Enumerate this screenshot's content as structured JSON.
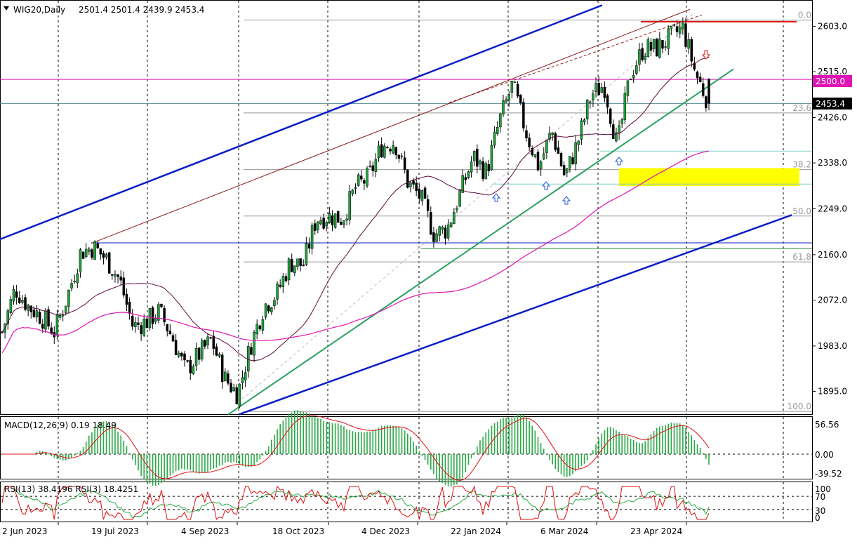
{
  "header": {
    "symbol_label": "WIG20,Daily",
    "ohlc_label": "2501.4 2501.4 2439.9 2453.4"
  },
  "price_labels": {
    "level_2500": "2500.0",
    "last_price": "2453.4"
  },
  "fib_labels": [
    {
      "label": "0.0",
      "price": 2615
    },
    {
      "label": "23.6",
      "price": 2435
    },
    {
      "label": "38.2",
      "price": 2325
    },
    {
      "label": "50.0",
      "price": 2235
    },
    {
      "label": "61.8",
      "price": 2146
    },
    {
      "label": "100.0",
      "price": 1856
    }
  ],
  "macd": {
    "label": "MACD(12,26,9) 0.19 18.49",
    "ticks": [
      "56.56",
      "0.00",
      "-39.52"
    ]
  },
  "rsi": {
    "label": "RSI(13) 38.4196  RSI(3) 18.4251",
    "ticks": [
      "100",
      "70",
      "30",
      "0"
    ]
  },
  "colors": {
    "bull": "#1fa33a",
    "bear": "#000000",
    "sma_short": "#5a0a3c",
    "sma_long": "#e014b4",
    "blue_channel": "#0a1ec8",
    "brown_channel": "#8b1a1a",
    "green_trend": "#2aa060",
    "support_fill": "#ffff00",
    "resistance": "#e01010",
    "macd_hist": "#2aa845",
    "macd_signal": "#e01010",
    "rsi_13": "#2aa845",
    "rsi_3": "#e01010",
    "fib": "#999999",
    "arrow_up": "#1e5ad8",
    "arrow_down": "#e01010"
  },
  "chart_data": {
    "type": "candlestick",
    "symbol": "WIG20",
    "timeframe": "Daily",
    "last": {
      "open": 2501.4,
      "high": 2501.4,
      "low": 2439.9,
      "close": 2453.4
    },
    "y_ticks": [
      2603.0,
      2515.0,
      2426.0,
      2338.0,
      2249.0,
      2160.0,
      2072.0,
      1983.0,
      1895.0
    ],
    "ylim": [
      1850,
      2640
    ],
    "x_tick_labels": [
      "2 Jun 2023",
      "19 Jul 2023",
      "4 Sep 2023",
      "18 Oct 2023",
      "4 Dec 2023",
      "22 Jan 2024",
      "6 Mar 2024",
      "23 Apr 2024"
    ],
    "horizontal_levels": [
      {
        "name": "2500 level",
        "price": 2500.0
      },
      {
        "name": "last price",
        "price": 2453.4
      },
      {
        "name": "resistance",
        "price": 2612
      },
      {
        "name": "support zone",
        "price_from": 2293,
        "price_to": 2328
      },
      {
        "name": "Jul-2023 high",
        "price": 2183
      },
      {
        "name": "Nov-2023 low",
        "price": 2172
      }
    ],
    "close_path": [
      [
        "2 Jun 2023",
        2010
      ],
      [
        "8 Jun 2023",
        2095
      ],
      [
        "14 Jun 2023",
        2060
      ],
      [
        "21 Jun 2023",
        2040
      ],
      [
        "28 Jun 2023",
        2010
      ],
      [
        "5 Jul 2023",
        2080
      ],
      [
        "12 Jul 2023",
        2165
      ],
      [
        "19 Jul 2023",
        2175
      ],
      [
        "26 Jul 2023",
        2150
      ],
      [
        "2 Aug 2023",
        2110
      ],
      [
        "9 Aug 2023",
        2020
      ],
      [
        "16 Aug 2023",
        2030
      ],
      [
        "23 Aug 2023",
        2050
      ],
      [
        "30 Aug 2023",
        2000
      ],
      [
        "4 Sep 2023",
        1935
      ],
      [
        "12 Sep 2023",
        1965
      ],
      [
        "19 Sep 2023",
        1995
      ],
      [
        "26 Sep 2023",
        1920
      ],
      [
        "3 Oct 2023",
        1890
      ],
      [
        "9 Oct 2023",
        1985
      ],
      [
        "13 Oct 2023",
        2060
      ],
      [
        "18 Oct 2023",
        2085
      ],
      [
        "25 Oct 2023",
        2145
      ],
      [
        "1 Nov 2023",
        2140
      ],
      [
        "8 Nov 2023",
        2230
      ],
      [
        "15 Nov 2023",
        2235
      ],
      [
        "22 Nov 2023",
        2230
      ],
      [
        "29 Nov 2023",
        2290
      ],
      [
        "4 Dec 2023",
        2310
      ],
      [
        "11 Dec 2023",
        2370
      ],
      [
        "18 Dec 2023",
        2380
      ],
      [
        "27 Dec 2023",
        2300
      ],
      [
        "3 Jan 2024",
        2270
      ],
      [
        "10 Jan 2024",
        2200
      ],
      [
        "17 Jan 2024",
        2210
      ],
      [
        "22 Jan 2024",
        2280
      ],
      [
        "29 Jan 2024",
        2350
      ],
      [
        "5 Feb 2024",
        2320
      ],
      [
        "12 Feb 2024",
        2420
      ],
      [
        "16 Feb 2024",
        2490
      ],
      [
        "23 Feb 2024",
        2400
      ],
      [
        "1 Mar 2024",
        2330
      ],
      [
        "6 Mar 2024",
        2400
      ],
      [
        "13 Mar 2024",
        2310
      ],
      [
        "20 Mar 2024",
        2380
      ],
      [
        "27 Mar 2024",
        2470
      ],
      [
        "3 Apr 2024",
        2490
      ],
      [
        "10 Apr 2024",
        2370
      ],
      [
        "17 Apr 2024",
        2510
      ],
      [
        "23 Apr 2024",
        2560
      ],
      [
        "30 Apr 2024",
        2560
      ],
      [
        "7 May 2024",
        2580
      ],
      [
        "14 May 2024",
        2600
      ],
      [
        "21 May 2024",
        2510
      ],
      [
        "28 May 2024",
        2453.4
      ]
    ],
    "indicators": {
      "macd": {
        "params": "12,26,9",
        "main": 0.19,
        "signal": 18.49,
        "ylim": [
          -39.52,
          56.56
        ]
      },
      "rsi": [
        {
          "period": 13,
          "value": 38.4196
        },
        {
          "period": 3,
          "value": 18.4251
        }
      ],
      "rsi_levels": [
        30,
        70
      ]
    }
  }
}
